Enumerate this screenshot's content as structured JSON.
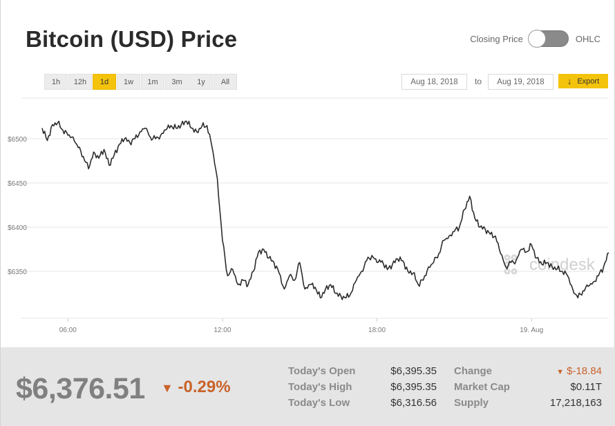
{
  "header": {
    "title": "Bitcoin (USD) Price",
    "toggle_left": "Closing Price",
    "toggle_right": "OHLC"
  },
  "range_buttons": [
    "1h",
    "12h",
    "1d",
    "1w",
    "1m",
    "3m",
    "1y",
    "All"
  ],
  "active_range": "1d",
  "date_range": {
    "from": "Aug 18, 2018",
    "to_label": "to",
    "to": "Aug 19, 2018"
  },
  "export_label": "Export",
  "watermark": "coindesk",
  "colors": {
    "accent": "#f4c30b",
    "negative": "#c9632a",
    "line": "#2b2b2b"
  },
  "chart_data": {
    "type": "line",
    "title": "Bitcoin (USD) Price",
    "xlabel": "",
    "ylabel": "",
    "y_ticks": [
      6350,
      6400,
      6450,
      6500
    ],
    "y_tick_labels": [
      "$6350",
      "$6400",
      "$6450",
      "$6500"
    ],
    "ylim": [
      6300,
      6540
    ],
    "xlim": [
      5.0,
      27.0
    ],
    "x_ticks": [
      6,
      12,
      18,
      24
    ],
    "x_tick_labels": [
      "06:00",
      "12:00",
      "18:00",
      "19. Aug"
    ],
    "grid": true,
    "series": [
      {
        "name": "Closing Price",
        "x": [
          5.0,
          5.2,
          5.4,
          5.6,
          5.8,
          6.0,
          6.2,
          6.4,
          6.6,
          6.8,
          7.0,
          7.2,
          7.4,
          7.6,
          7.8,
          8.0,
          8.2,
          8.4,
          8.6,
          8.8,
          9.0,
          9.2,
          9.4,
          9.6,
          9.8,
          10.0,
          10.2,
          10.4,
          10.6,
          10.8,
          11.0,
          11.2,
          11.4,
          11.6,
          11.8,
          12.0,
          12.2,
          12.4,
          12.6,
          12.8,
          13.0,
          13.2,
          13.4,
          13.6,
          13.8,
          14.0,
          14.2,
          14.4,
          14.6,
          14.8,
          15.0,
          15.2,
          15.4,
          15.6,
          15.8,
          16.0,
          16.2,
          16.4,
          16.6,
          16.8,
          17.0,
          17.2,
          17.4,
          17.6,
          17.8,
          18.0,
          18.2,
          18.4,
          18.6,
          18.8,
          19.0,
          19.2,
          19.4,
          19.6,
          19.8,
          20.0,
          20.2,
          20.4,
          20.6,
          20.8,
          21.0,
          21.2,
          21.4,
          21.6,
          21.8,
          22.0,
          22.2,
          22.4,
          22.6,
          22.8,
          23.0,
          23.2,
          23.4,
          23.6,
          23.8,
          24.0,
          24.2,
          24.4,
          24.6,
          24.8,
          25.0,
          25.2,
          25.4,
          25.6,
          25.8,
          26.0,
          26.2,
          26.4,
          26.6,
          26.8,
          27.0
        ],
        "values": [
          6512,
          6498,
          6516,
          6518,
          6510,
          6504,
          6502,
          6490,
          6480,
          6466,
          6485,
          6478,
          6488,
          6470,
          6482,
          6494,
          6500,
          6496,
          6500,
          6508,
          6512,
          6502,
          6500,
          6504,
          6510,
          6515,
          6512,
          6516,
          6520,
          6512,
          6508,
          6514,
          6515,
          6490,
          6455,
          6385,
          6345,
          6352,
          6335,
          6340,
          6335,
          6350,
          6372,
          6375,
          6365,
          6360,
          6348,
          6330,
          6345,
          6340,
          6360,
          6330,
          6335,
          6332,
          6320,
          6330,
          6335,
          6325,
          6322,
          6320,
          6326,
          6340,
          6350,
          6362,
          6368,
          6360,
          6362,
          6352,
          6358,
          6364,
          6362,
          6350,
          6348,
          6335,
          6340,
          6355,
          6360,
          6370,
          6385,
          6390,
          6395,
          6400,
          6420,
          6435,
          6410,
          6400,
          6398,
          6392,
          6390,
          6370,
          6355,
          6360,
          6362,
          6375,
          6372,
          6380,
          6365,
          6358,
          6360,
          6355,
          6353,
          6350,
          6345,
          6330,
          6320,
          6328,
          6333,
          6338,
          6345,
          6355,
          6371
        ],
        "last_value": 6376.51
      }
    ]
  },
  "summary": {
    "price": "$6,376.51",
    "change_percent": "-0.29%",
    "todays_open_label": "Today's Open",
    "todays_open": "$6,395.35",
    "todays_high_label": "Today's High",
    "todays_high": "$6,395.35",
    "todays_low_label": "Today's Low",
    "todays_low": "$6,316.56",
    "change_label": "Change",
    "change_value": "$-18.84",
    "market_cap_label": "Market Cap",
    "market_cap": "$0.11T",
    "supply_label": "Supply",
    "supply": "17,218,163"
  }
}
